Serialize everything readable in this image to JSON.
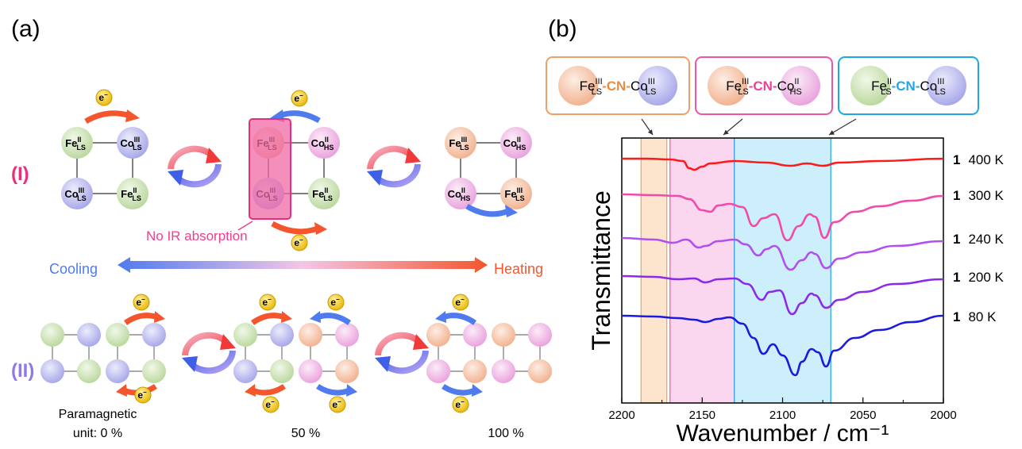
{
  "panel_a": {
    "letter": "(a)",
    "row1_label": "(I)",
    "row2_label": "(II)",
    "electron": "e",
    "electron_sup": "−",
    "no_ir_note": "No IR absorption",
    "cooling": "Cooling",
    "heating": "Heating",
    "para_line1": "Paramagnetic",
    "para_line2": "unit: 0 %",
    "pct_50": "50 %",
    "pct_100": "100 %",
    "colors": {
      "fe2_green": "#cfe5b8",
      "co3_blue": "#b9b9ee",
      "fe3_peach": "#f6c3a8",
      "co2_pink": "#f0b7e6",
      "highlight": "#ee3f8e",
      "cooling_blue": "#4f7bef",
      "heating_orange": "#f4552d",
      "row1_label_color": "#e8317a",
      "row2_label_color": "#8f7ae6"
    },
    "clusters": [
      {
        "tl": [
          "Fe",
          "II",
          "LS"
        ],
        "tr": [
          "Co",
          "III",
          "LS"
        ],
        "bl": [
          "Co",
          "III",
          "LS"
        ],
        "br": [
          "Fe",
          "II",
          "LS"
        ]
      },
      {
        "tl": [
          "Fe",
          "III",
          "LS"
        ],
        "tr": [
          "Co",
          "II",
          "HS"
        ],
        "bl": [
          "Co",
          "III",
          "LS"
        ],
        "br": [
          "Fe",
          "II",
          "LS"
        ]
      },
      {
        "tl": [
          "Fe",
          "III",
          "LS"
        ],
        "tr": [
          "Co",
          "II",
          "HS"
        ],
        "bl": [
          "Co",
          "II",
          "HS"
        ],
        "br": [
          "Fe",
          "III",
          "LS"
        ]
      }
    ]
  },
  "panel_b": {
    "letter": "(b)",
    "box1": {
      "a": "Fe",
      "a_sup": "III",
      "a_sub": "LS",
      "cn": "-CN-",
      "b": "Co",
      "b_sup": "III",
      "b_sub": "LS",
      "cn_color": "#f08a3c",
      "border": "#f0a064"
    },
    "box2": {
      "a": "Fe",
      "a_sup": "III",
      "a_sub": "LS",
      "cn": "-CN-",
      "b": "Co",
      "b_sup": "II",
      "b_sub": "HS",
      "cn_color": "#ee3f9a",
      "border": "#ee55a8"
    },
    "box3": {
      "a": "Fe",
      "a_sup": "II",
      "a_sub": "LS",
      "cn": "-CN-",
      "b": "Co",
      "b_sup": "III",
      "b_sub": "LS",
      "cn_color": "#1ea7e6",
      "border": "#1ea7e6"
    },
    "region_colors": [
      "#fde4cc",
      "#fbd6ef",
      "#cdeefb"
    ]
  },
  "chart_data": {
    "type": "line",
    "xlabel": "Wavenumber / cm⁻¹",
    "ylabel": "Transmittance",
    "xlim": [
      2200,
      2000
    ],
    "x_ticks": [
      "2200",
      "2150",
      "2100",
      "2050",
      "2000"
    ],
    "regions": [
      {
        "from": 2188,
        "to": 2172
      },
      {
        "from": 2170,
        "to": 2130
      },
      {
        "from": 2130,
        "to": 2070
      }
    ],
    "series": [
      {
        "name": "400 K",
        "compound": "1",
        "color": "#ff1a1a",
        "offset": 0.0,
        "points": [
          [
            2200,
            0
          ],
          [
            2185,
            0
          ],
          [
            2170,
            -1
          ],
          [
            2162,
            -3
          ],
          [
            2158,
            -12
          ],
          [
            2155,
            -14
          ],
          [
            2150,
            -10
          ],
          [
            2145,
            -6
          ],
          [
            2130,
            -3
          ],
          [
            2110,
            -5
          ],
          [
            2095,
            -9
          ],
          [
            2085,
            -6
          ],
          [
            2075,
            -9
          ],
          [
            2065,
            -5
          ],
          [
            2040,
            -3
          ],
          [
            2000,
            0
          ]
        ]
      },
      {
        "name": "300 K",
        "compound": "1",
        "color": "#f24aa8",
        "offset": 0.0,
        "points": [
          [
            2200,
            0
          ],
          [
            2180,
            -1
          ],
          [
            2165,
            -2
          ],
          [
            2158,
            -6
          ],
          [
            2150,
            -20
          ],
          [
            2145,
            -22
          ],
          [
            2140,
            -14
          ],
          [
            2133,
            -12
          ],
          [
            2125,
            -16
          ],
          [
            2118,
            -40
          ],
          [
            2112,
            -30
          ],
          [
            2105,
            -25
          ],
          [
            2097,
            -58
          ],
          [
            2090,
            -40
          ],
          [
            2083,
            -25
          ],
          [
            2080,
            -28
          ],
          [
            2074,
            -55
          ],
          [
            2068,
            -35
          ],
          [
            2055,
            -22
          ],
          [
            2040,
            -15
          ],
          [
            2020,
            -8
          ],
          [
            2000,
            -2
          ]
        ]
      },
      {
        "name": "240 K",
        "compound": "1",
        "color": "#b050ee",
        "offset": 0.0,
        "points": [
          [
            2200,
            0
          ],
          [
            2180,
            -2
          ],
          [
            2168,
            -6
          ],
          [
            2160,
            -2
          ],
          [
            2152,
            -12
          ],
          [
            2148,
            -10
          ],
          [
            2140,
            -4
          ],
          [
            2130,
            -2
          ],
          [
            2123,
            -8
          ],
          [
            2115,
            -22
          ],
          [
            2110,
            -14
          ],
          [
            2105,
            -10
          ],
          [
            2095,
            -40
          ],
          [
            2088,
            -28
          ],
          [
            2082,
            -18
          ],
          [
            2080,
            -20
          ],
          [
            2073,
            -38
          ],
          [
            2065,
            -26
          ],
          [
            2050,
            -18
          ],
          [
            2030,
            -10
          ],
          [
            2000,
            -4
          ]
        ]
      },
      {
        "name": "200 K",
        "compound": "1",
        "color": "#8a2bea",
        "offset": 0.0,
        "points": [
          [
            2200,
            0
          ],
          [
            2180,
            -1
          ],
          [
            2165,
            -4
          ],
          [
            2155,
            -3
          ],
          [
            2148,
            -8
          ],
          [
            2140,
            -4
          ],
          [
            2130,
            -3
          ],
          [
            2122,
            -10
          ],
          [
            2113,
            -30
          ],
          [
            2108,
            -20
          ],
          [
            2102,
            -18
          ],
          [
            2094,
            -48
          ],
          [
            2088,
            -34
          ],
          [
            2082,
            -22
          ],
          [
            2080,
            -24
          ],
          [
            2073,
            -40
          ],
          [
            2065,
            -30
          ],
          [
            2050,
            -20
          ],
          [
            2030,
            -10
          ],
          [
            2000,
            -4
          ]
        ]
      },
      {
        "name": "80 K",
        "compound": "1",
        "color": "#1a1ae0",
        "offset": 0.0,
        "points": [
          [
            2200,
            0
          ],
          [
            2180,
            -1
          ],
          [
            2165,
            -3
          ],
          [
            2155,
            -5
          ],
          [
            2148,
            -8
          ],
          [
            2140,
            -4
          ],
          [
            2133,
            -2
          ],
          [
            2125,
            -10
          ],
          [
            2118,
            -28
          ],
          [
            2112,
            -48
          ],
          [
            2106,
            -36
          ],
          [
            2100,
            -50
          ],
          [
            2092,
            -75
          ],
          [
            2088,
            -58
          ],
          [
            2082,
            -42
          ],
          [
            2078,
            -46
          ],
          [
            2073,
            -64
          ],
          [
            2068,
            -44
          ],
          [
            2055,
            -28
          ],
          [
            2040,
            -18
          ],
          [
            2020,
            -8
          ],
          [
            2000,
            0
          ]
        ]
      }
    ]
  }
}
